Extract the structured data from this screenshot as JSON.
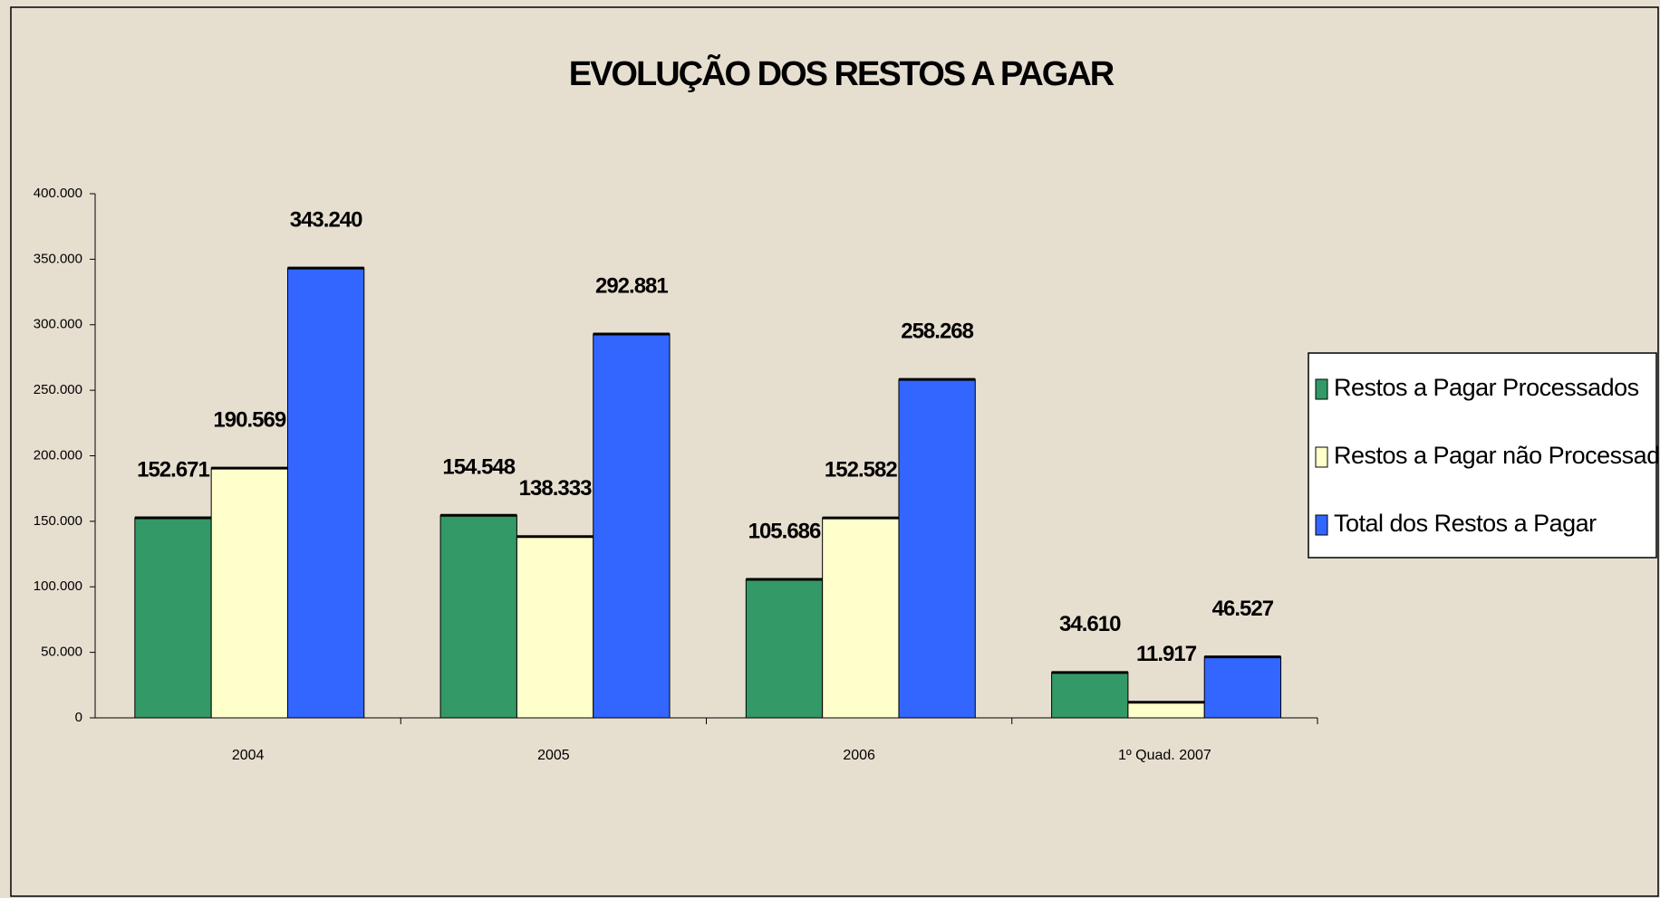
{
  "chart_data": {
    "type": "bar",
    "title": "EVOLUÇÃO DOS RESTOS A PAGAR",
    "categories": [
      "2004",
      "2005",
      "2006",
      "1º Quad. 2007"
    ],
    "series": [
      {
        "name": "Restos a Pagar Processados",
        "color": "#339966",
        "values": [
          152671,
          154548,
          105686,
          34610
        ],
        "value_labels": [
          "152.671",
          "154.548",
          "105.686",
          "34.610"
        ]
      },
      {
        "name": "Restos a Pagar não Processados",
        "color": "#ffffcc",
        "values": [
          190569,
          138333,
          152582,
          11917
        ],
        "value_labels": [
          "190.569",
          "138.333",
          "152.582",
          "11.917"
        ]
      },
      {
        "name": "Total dos Restos a Pagar",
        "color": "#3366ff",
        "values": [
          343240,
          292881,
          258268,
          46527
        ],
        "value_labels": [
          "343.240",
          "292.881",
          "258.268",
          "46.527"
        ]
      }
    ],
    "ylim": [
      0,
      400000
    ],
    "yticks": [
      0,
      {
        "value": 50000,
        "label": "50.000"
      },
      {
        "value": 100000,
        "label": "100.000"
      },
      {
        "value": 150000,
        "label": "150.000"
      },
      {
        "value": 200000,
        "label": "200.000"
      },
      {
        "value": 250000,
        "label": "250.000"
      },
      {
        "value": 300000,
        "label": "300.000"
      },
      {
        "value": 350000,
        "label": "350.000"
      },
      {
        "value": 400000,
        "label": "400.000"
      }
    ],
    "legend": "right"
  }
}
